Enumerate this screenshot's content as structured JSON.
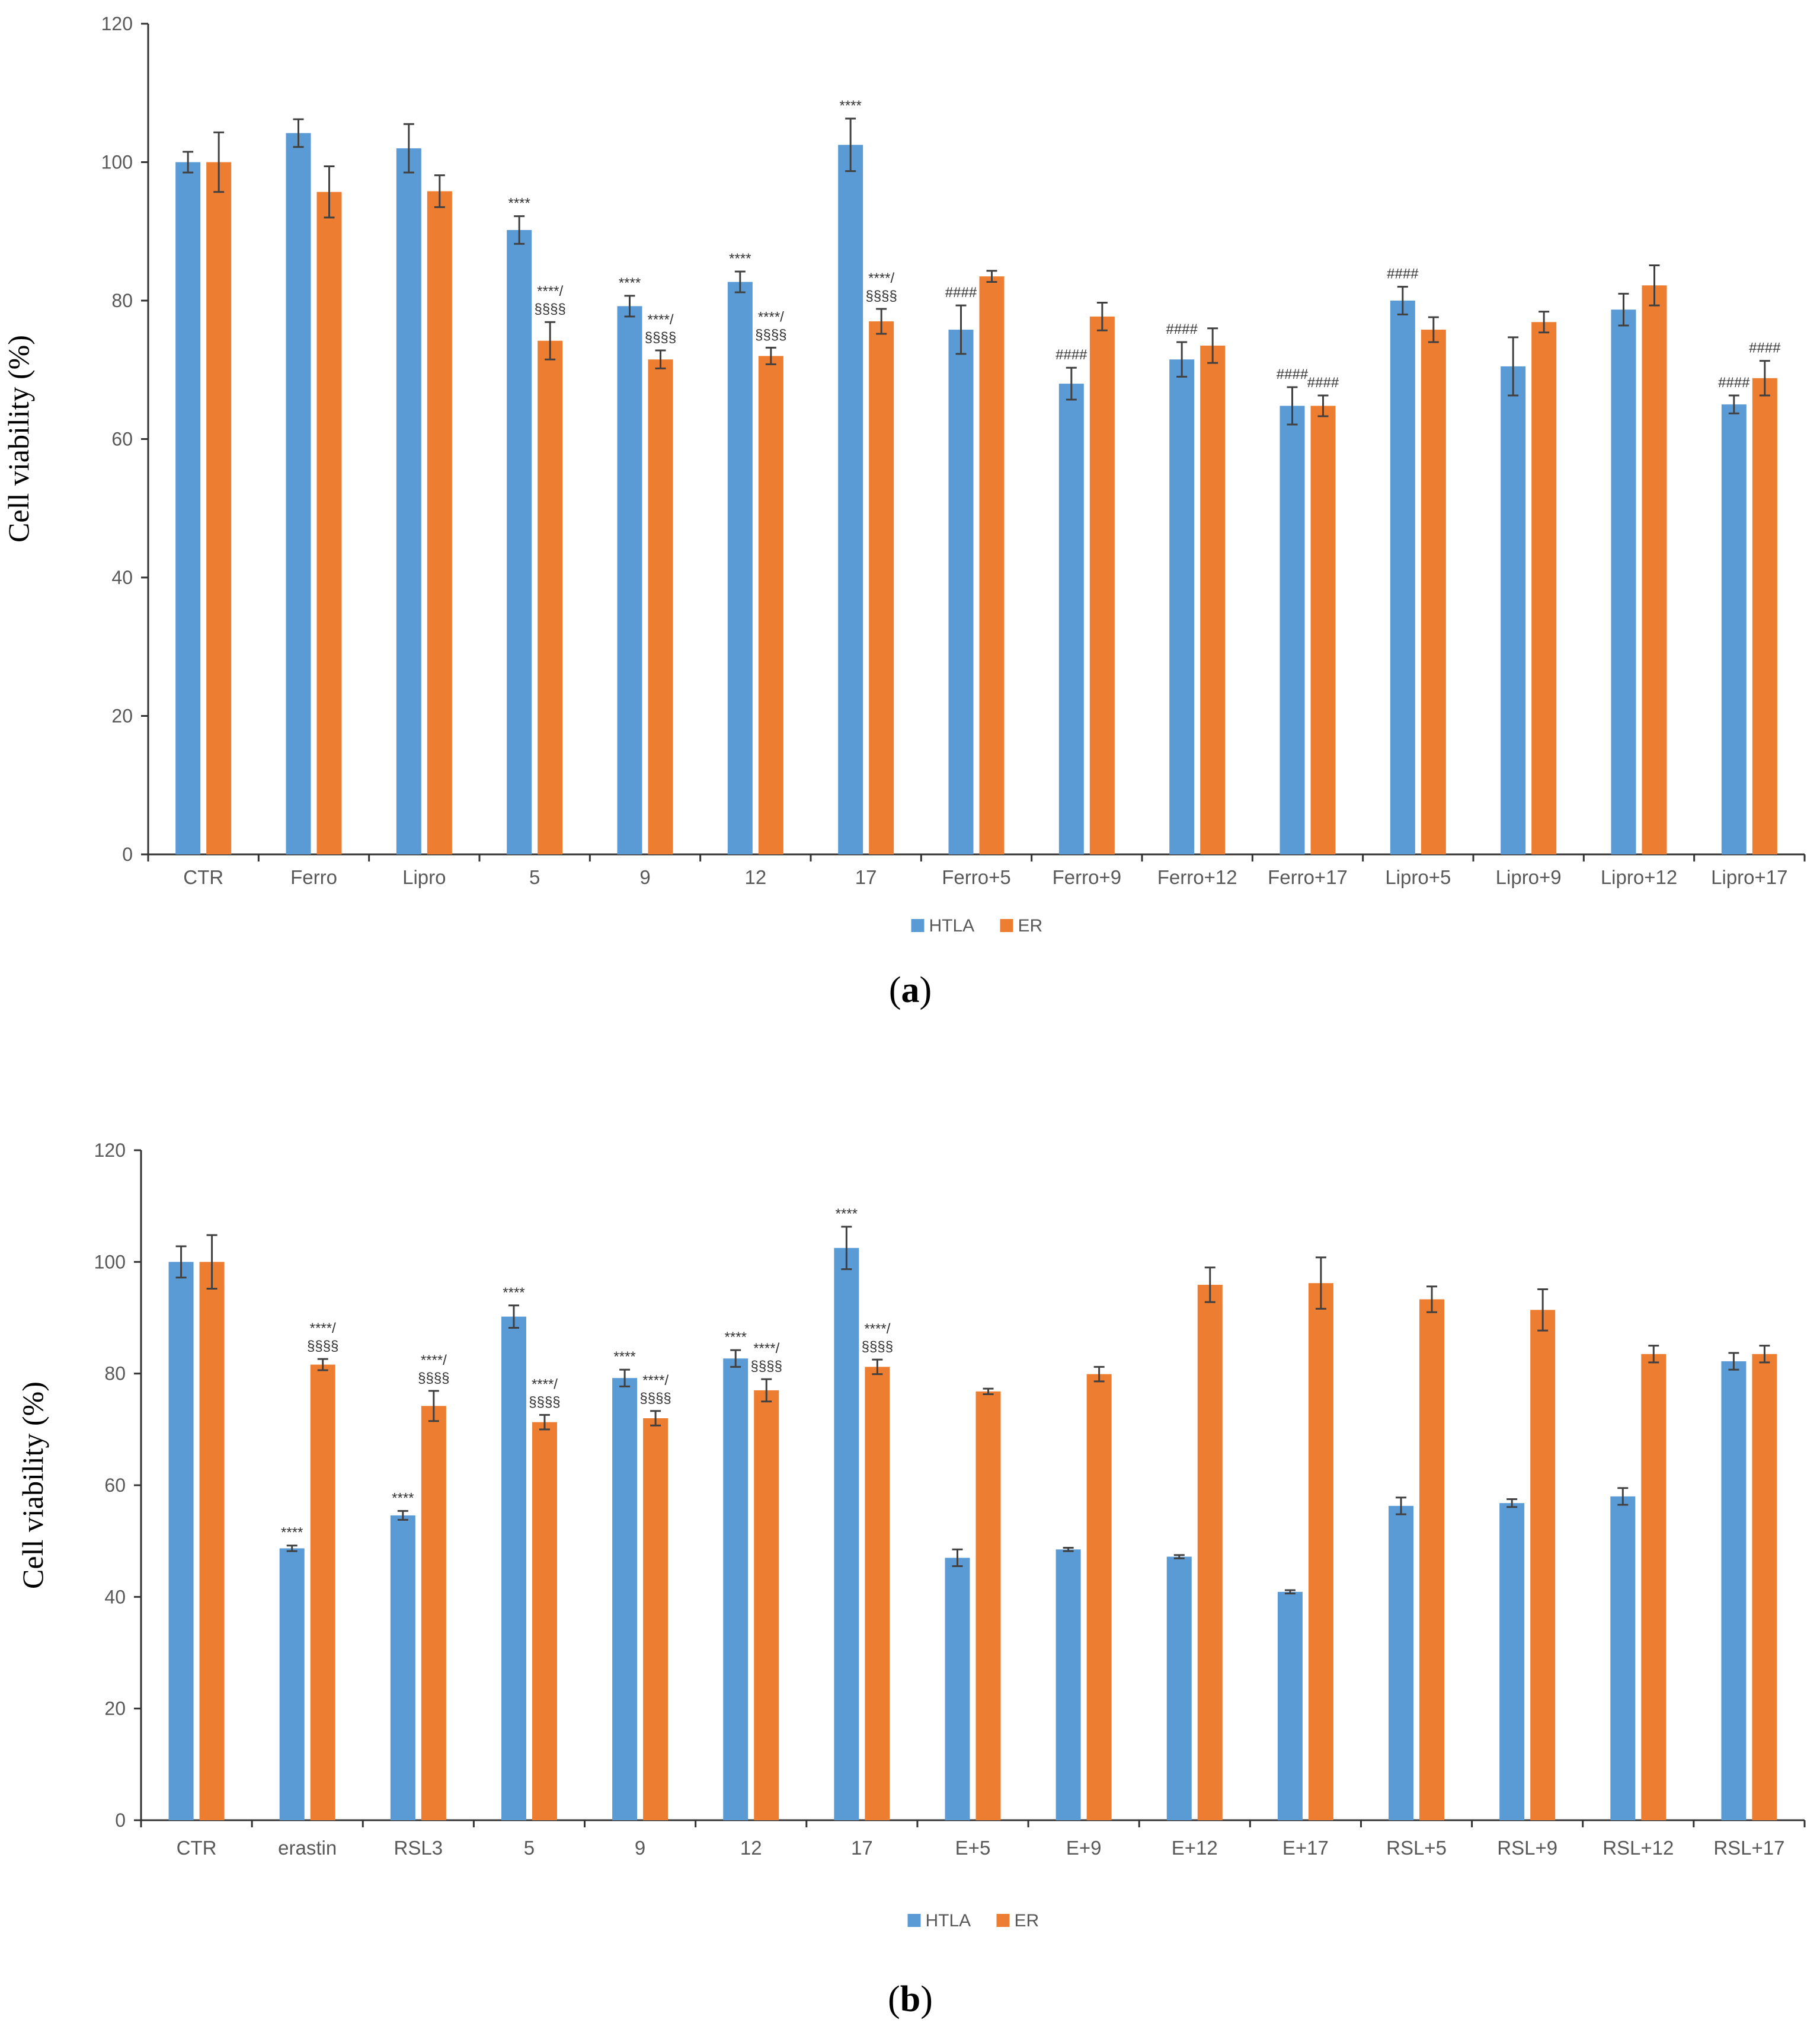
{
  "chart_data": [
    {
      "type": "bar",
      "panel_label": "a",
      "ylabel": "Cell viability (%)",
      "xlabel": "",
      "ylim": [
        0,
        120
      ],
      "yticks": [
        0,
        20,
        40,
        60,
        80,
        100,
        120
      ],
      "categories": [
        "CTR",
        "Ferro",
        "Lipro",
        "5",
        "9",
        "12",
        "17",
        "Ferro+5",
        "Ferro+9",
        "Ferro+12",
        "Ferro+17",
        "Lipro+5",
        "Lipro+9",
        "Lipro+12",
        "Lipro+17"
      ],
      "series": [
        {
          "name": "HTLA",
          "color": "#5B9BD5",
          "values": [
            100,
            104.2,
            102,
            90.2,
            79.2,
            82.7,
            102.5,
            75.8,
            68,
            71.5,
            64.8,
            80,
            70.5,
            78.7,
            65
          ],
          "errors": [
            1.5,
            2,
            3.5,
            2,
            1.5,
            1.5,
            3.8,
            3.5,
            2.3,
            2.5,
            2.7,
            2,
            4.2,
            2.3,
            1.3
          ],
          "annotations": [
            "",
            "",
            "",
            "****",
            "****",
            "****",
            "****",
            "####",
            "####",
            "####",
            "####",
            "####",
            "",
            "",
            "####"
          ]
        },
        {
          "name": "ER",
          "color": "#ED7D31",
          "values": [
            100,
            95.7,
            95.8,
            74.2,
            71.5,
            72,
            77,
            83.5,
            77.7,
            73.5,
            64.8,
            75.8,
            76.9,
            82.2,
            68.8
          ],
          "errors": [
            4.3,
            3.7,
            2.3,
            2.7,
            1.3,
            1.2,
            1.8,
            0.8,
            2,
            2.5,
            1.5,
            1.8,
            1.5,
            2.9,
            2.5
          ],
          "annotations": [
            "",
            "",
            "",
            "****/|§§§§",
            "****/|§§§§",
            "****/|§§§§",
            "****/|§§§§",
            "",
            "",
            "",
            "####",
            "",
            "",
            "",
            "####"
          ]
        }
      ],
      "legend": [
        "HTLA",
        "ER"
      ],
      "legend_position": "bottom"
    },
    {
      "type": "bar",
      "panel_label": "b",
      "ylabel": "Cell viability (%)",
      "xlabel": "",
      "ylim": [
        0,
        120
      ],
      "yticks": [
        0,
        20,
        40,
        60,
        80,
        100,
        120
      ],
      "categories": [
        "CTR",
        "erastin",
        "RSL3",
        "5",
        "9",
        "12",
        "17",
        "E+5",
        "E+9",
        "E+12",
        "E+17",
        "RSL+5",
        "RSL+9",
        "RSL+12",
        "RSL+17"
      ],
      "series": [
        {
          "name": "HTLA",
          "color": "#5B9BD5",
          "values": [
            100,
            48.7,
            54.6,
            90.2,
            79.2,
            82.7,
            102.5,
            47,
            48.5,
            47.2,
            40.9,
            56.3,
            56.8,
            58,
            82.2
          ],
          "errors": [
            2.8,
            0.5,
            0.8,
            2,
            1.5,
            1.5,
            3.8,
            1.5,
            0.3,
            0.3,
            0.3,
            1.5,
            0.7,
            1.5,
            1.5
          ],
          "annotations": [
            "",
            "****",
            "****",
            "****",
            "****",
            "****",
            "****",
            "",
            "",
            "",
            "",
            "",
            "",
            "",
            ""
          ]
        },
        {
          "name": "ER",
          "color": "#ED7D31",
          "values": [
            100,
            81.6,
            74.2,
            71.3,
            72,
            77,
            81.2,
            76.8,
            79.9,
            95.9,
            96.2,
            93.3,
            91.4,
            83.5,
            83.5
          ],
          "errors": [
            4.8,
            1,
            2.7,
            1.3,
            1.3,
            2,
            1.3,
            0.5,
            1.3,
            3.1,
            4.6,
            2.3,
            3.7,
            1.5,
            1.5
          ],
          "annotations": [
            "",
            "****/|§§§§",
            "****/|§§§§",
            "****/|§§§§",
            "****/|§§§§",
            "****/|§§§§",
            "****/|§§§§",
            "",
            "",
            "",
            "",
            "",
            "",
            "",
            ""
          ]
        }
      ],
      "legend": [
        "HTLA",
        "ER"
      ],
      "legend_position": "bottom"
    }
  ]
}
